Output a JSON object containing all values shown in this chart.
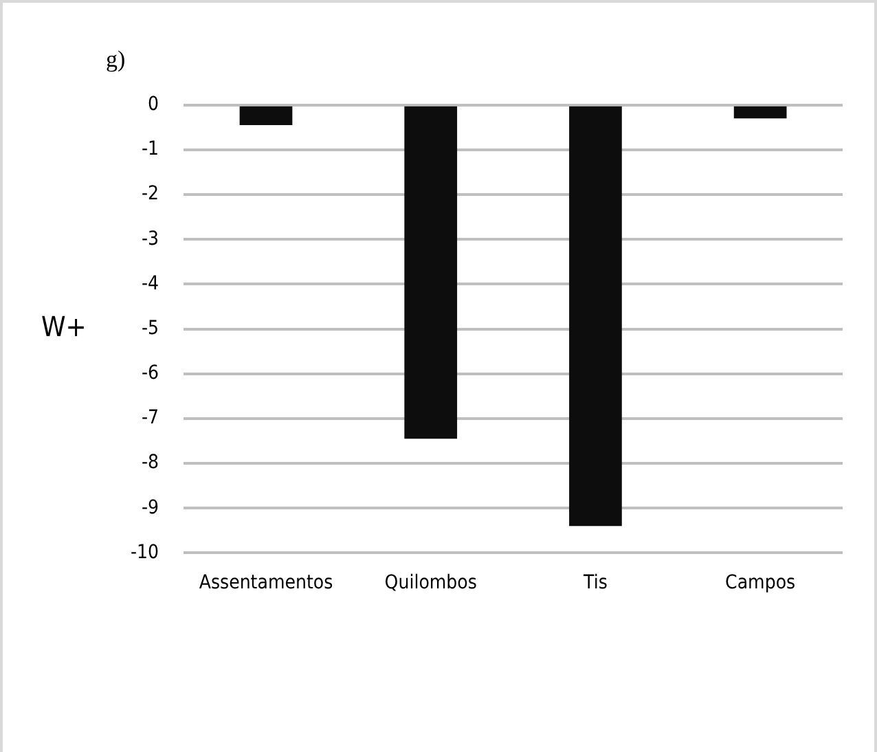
{
  "chart_data": {
    "type": "bar",
    "title": "g)",
    "ylabel": "W+",
    "categories": [
      "Assentamentos",
      "Quilombos",
      "Tis",
      "Campos"
    ],
    "values": [
      -0.45,
      -7.45,
      -9.4,
      -0.3
    ],
    "color": "#0d0d0d",
    "ylim": [
      -10,
      0
    ],
    "yticks": [
      0,
      -1,
      -2,
      -3,
      -4,
      -5,
      -6,
      -7,
      -8,
      -9,
      -10
    ],
    "grid": "y",
    "legend": false
  }
}
